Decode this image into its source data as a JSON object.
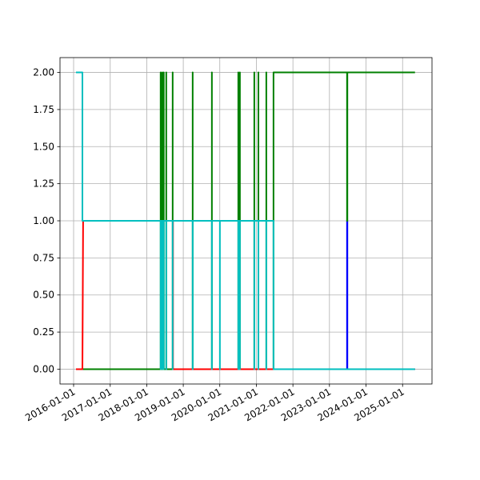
{
  "chart_data": {
    "type": "line",
    "xlim": [
      "2015-08-18",
      "2025-10-22"
    ],
    "xticks": [
      "2016-01-01",
      "2017-01-01",
      "2018-01-01",
      "2019-01-01",
      "2020-01-01",
      "2021-01-01",
      "2022-01-01",
      "2023-01-01",
      "2024-01-01",
      "2025-01-01"
    ],
    "ylim": [
      -0.1,
      2.1
    ],
    "yticks": [
      {
        "value": 0,
        "label": "0.00"
      },
      {
        "value": 0.25,
        "label": "0.25"
      },
      {
        "value": 0.5,
        "label": "0.50"
      },
      {
        "value": 0.75,
        "label": "0.75"
      },
      {
        "value": 1,
        "label": "1.00"
      },
      {
        "value": 1.25,
        "label": "1.25"
      },
      {
        "value": 1.5,
        "label": "1.50"
      },
      {
        "value": 1.75,
        "label": "1.75"
      },
      {
        "value": 2,
        "label": "2.00"
      }
    ],
    "grid": true,
    "series": [
      {
        "color": "#0000ff",
        "x": [
          "2016-01-25",
          "2023-06-26",
          "2023-06-26",
          "2023-06-29",
          "2023-06-29",
          "2025-05-05"
        ],
        "values": [
          0,
          0,
          1,
          1,
          0,
          0
        ]
      },
      {
        "color": "#008000",
        "x": [
          "2016-04-05",
          "2018-05-20",
          "2018-05-20",
          "2018-05-20",
          "2018-06-05",
          "2018-06-05",
          "2018-06-05",
          "2018-06-20",
          "2018-06-20",
          "2018-06-20",
          "2018-07-15",
          "2018-07-15",
          "2018-07-15",
          "2018-09-17",
          "2018-09-17",
          "2018-09-17",
          "2019-04-05",
          "2019-04-05",
          "2019-04-05",
          "2019-10-14",
          "2019-10-14",
          "2019-10-14",
          "2020-07-04",
          "2020-07-04",
          "2020-07-04",
          "2020-07-20",
          "2020-07-20",
          "2020-07-20",
          "2020-12-11",
          "2020-12-11",
          "2020-12-11",
          "2021-01-21",
          "2021-01-21",
          "2021-01-21",
          "2021-04-10",
          "2021-04-10",
          "2021-04-10",
          "2021-06-21",
          "2021-06-21",
          "2023-06-26",
          "2023-06-26",
          "2023-06-29",
          "2023-06-29",
          "2025-05-05"
        ],
        "values": [
          0,
          0,
          2,
          0,
          0,
          2,
          0,
          0,
          2,
          0,
          0,
          2,
          0,
          0,
          2,
          0,
          0,
          2,
          0,
          0,
          2,
          0,
          0,
          2,
          0,
          0,
          2,
          0,
          0,
          2,
          0,
          0,
          2,
          0,
          0,
          2,
          0,
          0,
          2,
          2,
          1,
          1,
          2,
          2
        ]
      },
      {
        "color": "#ff0000",
        "x": [
          "2016-01-25",
          "2016-03-29",
          "2016-04-05",
          "2018-09-20",
          "2018-09-20",
          "2021-06-21",
          "2025-05-05"
        ],
        "values": [
          0,
          0,
          1,
          1,
          0,
          0,
          0
        ]
      },
      {
        "color": "#00bfbf",
        "x": [
          "2016-01-25",
          "2016-03-29",
          "2016-03-29",
          "2018-05-20",
          "2018-05-20",
          "2018-05-20",
          "2018-06-05",
          "2018-06-05",
          "2018-06-05",
          "2018-06-20",
          "2018-06-20",
          "2018-06-20",
          "2018-07-15",
          "2018-07-15",
          "2018-07-15",
          "2018-09-17",
          "2018-09-17",
          "2018-09-17",
          "2019-04-05",
          "2019-04-05",
          "2019-04-05",
          "2019-10-14",
          "2019-10-14",
          "2019-10-14",
          "2020-01-02",
          "2020-01-02",
          "2020-01-02",
          "2020-07-04",
          "2020-07-04",
          "2020-07-04",
          "2020-07-20",
          "2020-07-20",
          "2020-07-20",
          "2020-12-11",
          "2020-12-11",
          "2020-12-11",
          "2021-01-21",
          "2021-01-21",
          "2021-01-21",
          "2021-04-10",
          "2021-04-10",
          "2021-04-10",
          "2021-06-21",
          "2021-06-21",
          "2025-05-05"
        ],
        "values": [
          2,
          2,
          1,
          1,
          0,
          1,
          1,
          0,
          1,
          1,
          0,
          1,
          1,
          0,
          1,
          1,
          0,
          1,
          1,
          0,
          1,
          1,
          0,
          1,
          1,
          0,
          1,
          1,
          0,
          1,
          1,
          0,
          1,
          1,
          0,
          1,
          1,
          0,
          1,
          1,
          0,
          1,
          1,
          0,
          0
        ]
      }
    ]
  }
}
